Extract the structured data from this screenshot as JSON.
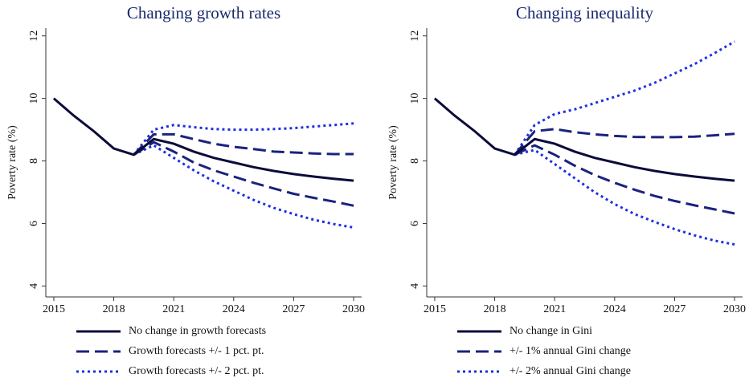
{
  "chart_data": [
    {
      "type": "line",
      "title": "Changing growth rates",
      "ylabel": "Poverty rate (%)",
      "x": [
        2015,
        2016,
        2017,
        2018,
        2019,
        2020,
        2021,
        2022,
        2023,
        2024,
        2025,
        2026,
        2027,
        2028,
        2029,
        2030
      ],
      "xlim": [
        2014.6,
        2030.4
      ],
      "xticks": [
        2015,
        2018,
        2021,
        2024,
        2027,
        2030
      ],
      "ylim": [
        3.65,
        12.25
      ],
      "yticks": [
        4,
        6,
        8,
        10,
        12
      ],
      "series": [
        {
          "name": "No change in growth forecasts",
          "color": "#0b0b3b",
          "dash": "solid",
          "values": [
            10.0,
            9.45,
            8.95,
            8.4,
            8.2,
            8.7,
            8.55,
            8.3,
            8.1,
            7.95,
            7.8,
            7.68,
            7.58,
            7.5,
            7.43,
            7.37
          ]
        },
        {
          "name": "Growth forecasts +/- 1 pct. pt.",
          "color": "#1a237e",
          "dash": "dash",
          "values": [
            null,
            null,
            null,
            null,
            8.2,
            8.85,
            8.85,
            8.7,
            8.55,
            8.45,
            8.38,
            8.3,
            8.27,
            8.24,
            8.22,
            8.22
          ],
          "lower": [
            null,
            null,
            null,
            null,
            8.2,
            8.6,
            8.3,
            7.95,
            7.7,
            7.5,
            7.3,
            7.12,
            6.95,
            6.82,
            6.7,
            6.57
          ]
        },
        {
          "name": "Growth forecasts +/- 2 pct. pt.",
          "color": "#1f2fe0",
          "dash": "dot",
          "values": [
            null,
            null,
            null,
            null,
            8.2,
            9.0,
            9.15,
            9.08,
            9.02,
            9.0,
            9.0,
            9.02,
            9.05,
            9.1,
            9.15,
            9.2
          ],
          "lower": [
            null,
            null,
            null,
            null,
            8.2,
            8.5,
            8.1,
            7.7,
            7.35,
            7.05,
            6.75,
            6.5,
            6.3,
            6.12,
            5.98,
            5.87
          ]
        }
      ]
    },
    {
      "type": "line",
      "title": "Changing inequality",
      "ylabel": "Poverty rate (%)",
      "x": [
        2015,
        2016,
        2017,
        2018,
        2019,
        2020,
        2021,
        2022,
        2023,
        2024,
        2025,
        2026,
        2027,
        2028,
        2029,
        2030
      ],
      "xlim": [
        2014.6,
        2030.4
      ],
      "xticks": [
        2015,
        2018,
        2021,
        2024,
        2027,
        2030
      ],
      "ylim": [
        3.65,
        12.25
      ],
      "yticks": [
        4,
        6,
        8,
        10,
        12
      ],
      "series": [
        {
          "name": "No change in Gini",
          "color": "#0b0b3b",
          "dash": "solid",
          "values": [
            10.0,
            9.45,
            8.95,
            8.4,
            8.2,
            8.7,
            8.55,
            8.3,
            8.1,
            7.95,
            7.8,
            7.68,
            7.58,
            7.5,
            7.43,
            7.37
          ]
        },
        {
          "name": "+/- 1% annual Gini change",
          "color": "#1a237e",
          "dash": "dash",
          "values": [
            null,
            null,
            null,
            null,
            8.2,
            8.95,
            9.02,
            8.92,
            8.85,
            8.8,
            8.77,
            8.76,
            8.76,
            8.78,
            8.82,
            8.87
          ],
          "lower": [
            null,
            null,
            null,
            null,
            8.2,
            8.5,
            8.2,
            7.85,
            7.55,
            7.3,
            7.08,
            6.88,
            6.72,
            6.58,
            6.45,
            6.32
          ]
        },
        {
          "name": "+/- 2% annual Gini change",
          "color": "#1f2fe0",
          "dash": "dot",
          "values": [
            null,
            null,
            null,
            null,
            8.2,
            9.15,
            9.5,
            9.65,
            9.85,
            10.05,
            10.25,
            10.5,
            10.8,
            11.1,
            11.45,
            11.82
          ],
          "lower": [
            null,
            null,
            null,
            null,
            8.2,
            8.35,
            7.9,
            7.45,
            7.0,
            6.62,
            6.3,
            6.05,
            5.82,
            5.62,
            5.45,
            5.33
          ]
        }
      ]
    }
  ]
}
